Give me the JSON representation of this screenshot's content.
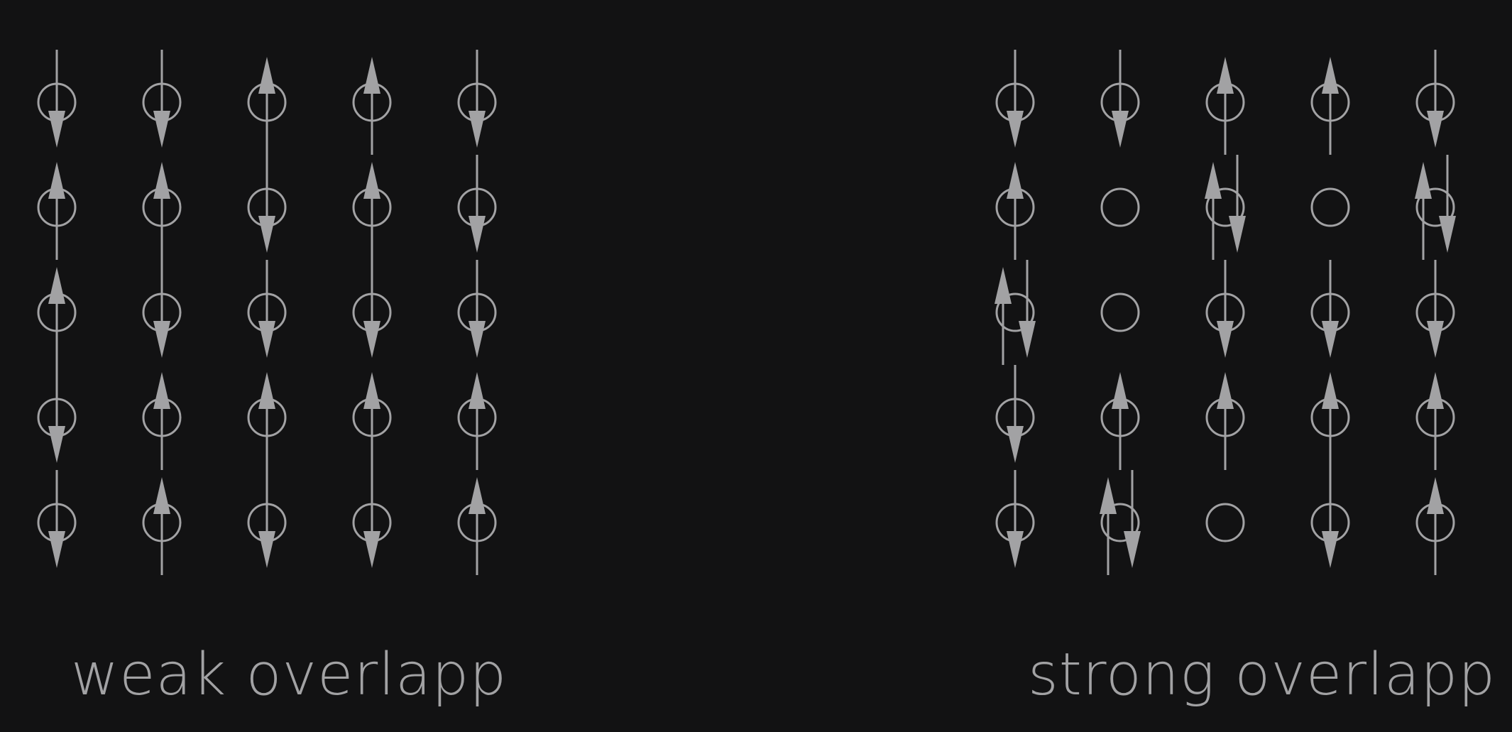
{
  "colors": {
    "background": "#121213",
    "stroke": "#a2a2a4"
  },
  "panels": [
    {
      "id": "weak",
      "caption": "weak overlapp",
      "grid": [
        [
          "down",
          "down",
          "up",
          "up",
          "down"
        ],
        [
          "up",
          "up",
          "down",
          "up",
          "down"
        ],
        [
          "up",
          "down",
          "down",
          "down",
          "down"
        ],
        [
          "down",
          "up",
          "up",
          "up",
          "up"
        ],
        [
          "down",
          "up",
          "down",
          "down",
          "up"
        ]
      ]
    },
    {
      "id": "strong",
      "caption": "strong overlapp",
      "grid": [
        [
          "down",
          "down",
          "up",
          "up",
          "down"
        ],
        [
          "up",
          "empty",
          "pair",
          "empty",
          "pair"
        ],
        [
          "pair",
          "empty",
          "down",
          "down",
          "down"
        ],
        [
          "down",
          "up",
          "up",
          "up",
          "up"
        ],
        [
          "down",
          "pair",
          "empty",
          "down",
          "up"
        ]
      ]
    }
  ]
}
